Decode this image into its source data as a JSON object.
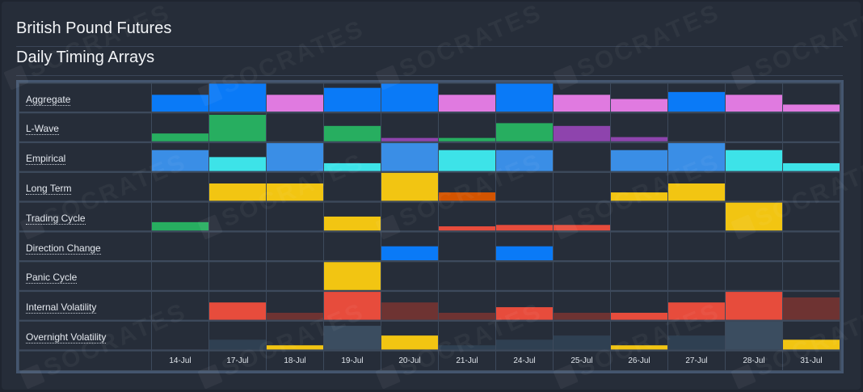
{
  "header": {
    "title": "British Pound Futures",
    "subtitle": "Daily Timing Arrays"
  },
  "watermark": "SOCRATES",
  "chart_data": {
    "type": "heatmap",
    "columns": [
      "14-Jul",
      "17-Jul",
      "18-Jul",
      "19-Jul",
      "20-Jul",
      "21-Jul",
      "24-Jul",
      "25-Jul",
      "26-Jul",
      "27-Jul",
      "28-Jul",
      "31-Jul"
    ],
    "rows": [
      {
        "label": "Aggregate",
        "values": [
          0.6,
          1.0,
          0.6,
          0.85,
          1.0,
          0.6,
          1.0,
          0.6,
          0.45,
          0.7,
          0.6,
          0.25
        ],
        "colors": [
          "#0a7af7",
          "#0a7af7",
          "#e07ae0",
          "#0a7af7",
          "#0a7af7",
          "#e07ae0",
          "#0a7af7",
          "#e07ae0",
          "#e07ae0",
          "#0a7af7",
          "#e07ae0",
          "#e07ae0"
        ]
      },
      {
        "label": "L-Wave",
        "values": [
          0.28,
          0.95,
          0,
          0.55,
          0.12,
          0.12,
          0.65,
          0.55,
          0.15,
          0,
          0,
          0
        ],
        "colors": [
          "#27ae60",
          "#27ae60",
          "#27ae60",
          "#27ae60",
          "#8e44ad",
          "#27ae60",
          "#27ae60",
          "#8e44ad",
          "#8e44ad",
          "#27ae60",
          "#27ae60",
          "#27ae60"
        ]
      },
      {
        "label": "Empirical",
        "values": [
          0.75,
          0.5,
          1.0,
          0.28,
          1.0,
          0.75,
          0.75,
          0,
          0.75,
          1.0,
          0.75,
          0.28
        ],
        "colors": [
          "#3a8ee6",
          "#3de3e8",
          "#3a8ee6",
          "#3de3e8",
          "#3a8ee6",
          "#3de3e8",
          "#3a8ee6",
          "#3a8ee6",
          "#3a8ee6",
          "#3a8ee6",
          "#3de3e8",
          "#3de3e8"
        ]
      },
      {
        "label": "Long Term",
        "values": [
          0,
          0.62,
          0.62,
          0,
          1.0,
          0.3,
          0,
          0,
          0.3,
          0.62,
          0,
          0
        ],
        "colors": [
          "#f2c512",
          "#f2c512",
          "#f2c512",
          "#f2c512",
          "#f2c512",
          "#d35400",
          "#f2c512",
          "#f2c512",
          "#f2c512",
          "#f2c512",
          "#f2c512",
          "#f2c512"
        ]
      },
      {
        "label": "Trading Cycle",
        "values": [
          0.3,
          0,
          0,
          0.5,
          0,
          0.15,
          0.2,
          0.2,
          0,
          0,
          1.0,
          0
        ],
        "colors": [
          "#27ae60",
          "#f2c512",
          "#f2c512",
          "#f2c512",
          "#f2c512",
          "#e74c3c",
          "#e74c3c",
          "#e74c3c",
          "#f2c512",
          "#f2c512",
          "#f2c512",
          "#f2c512"
        ]
      },
      {
        "label": "Direction Change",
        "values": [
          0,
          0,
          0,
          0,
          0.5,
          0,
          0.5,
          0,
          0,
          0,
          0,
          0
        ],
        "colors": [
          "#0a7af7",
          "#0a7af7",
          "#0a7af7",
          "#0a7af7",
          "#0a7af7",
          "#0a7af7",
          "#0a7af7",
          "#0a7af7",
          "#0a7af7",
          "#0a7af7",
          "#0a7af7",
          "#0a7af7"
        ]
      },
      {
        "label": "Panic Cycle",
        "values": [
          0,
          0,
          0,
          1.0,
          0,
          0,
          0,
          0,
          0,
          0,
          0,
          0
        ],
        "colors": [
          "#f2c512",
          "#f2c512",
          "#f2c512",
          "#f2c512",
          "#f2c512",
          "#f2c512",
          "#f2c512",
          "#f2c512",
          "#f2c512",
          "#f2c512",
          "#f2c512",
          "#f2c512"
        ]
      },
      {
        "label": "Internal Volatility",
        "values": [
          0,
          0.62,
          0.25,
          1.0,
          0.62,
          0.25,
          0.45,
          0.25,
          0.25,
          0.62,
          1.0,
          0.8
        ],
        "colors": [
          "#e74c3c",
          "#e74c3c",
          "#6e3332",
          "#e74c3c",
          "#6e3332",
          "#6e3332",
          "#e74c3c",
          "#6e3332",
          "#e74c3c",
          "#e74c3c",
          "#e74c3c",
          "#6e3332"
        ]
      },
      {
        "label": "Overnight Volatility",
        "values": [
          0,
          0.35,
          0.15,
          0.85,
          0.5,
          0.15,
          0.35,
          0.5,
          0.15,
          0.5,
          1.0,
          0.35
        ],
        "colors": [
          "#2f4052",
          "#2f4052",
          "#f2c512",
          "#3b4d60",
          "#f2c512",
          "#2f4052",
          "#2f4052",
          "#2f4052",
          "#f2c512",
          "#2f4052",
          "#3b4d60",
          "#f2c512"
        ]
      }
    ]
  }
}
